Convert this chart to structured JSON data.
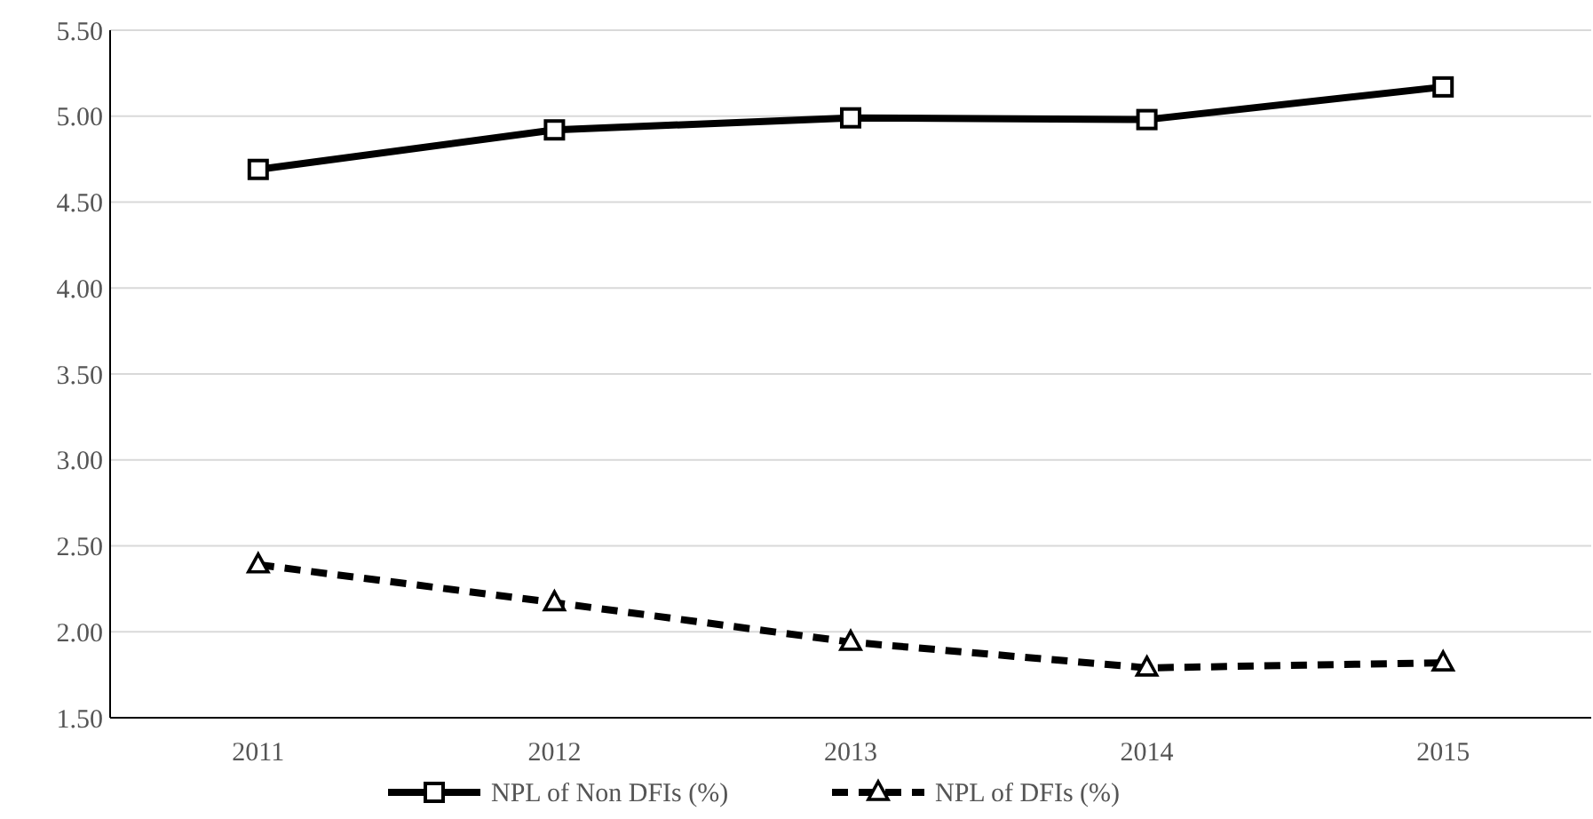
{
  "chart_data": {
    "type": "line",
    "categories": [
      "2011",
      "2012",
      "2013",
      "2014",
      "2015"
    ],
    "series": [
      {
        "name": "NPL of Non DFIs (%)",
        "color": "#000000",
        "values": [
          4.69,
          4.92,
          4.99,
          4.98,
          5.17
        ],
        "marker": "square",
        "line_style": "solid"
      },
      {
        "name": "NPL of DFIs (%)",
        "color": "#000000",
        "values": [
          2.39,
          2.17,
          1.94,
          1.79,
          1.82
        ],
        "marker": "triangle",
        "line_style": "dashed"
      }
    ],
    "ylim": [
      1.5,
      5.5
    ],
    "yticks": [
      {
        "value": 1.5,
        "label": "1.50"
      },
      {
        "value": 2,
        "label": "2.00"
      },
      {
        "value": 2.5,
        "label": "2.50"
      },
      {
        "value": 3,
        "label": "3.00"
      },
      {
        "value": 3.5,
        "label": "3.50"
      },
      {
        "value": 4,
        "label": "4.00"
      },
      {
        "value": 4.5,
        "label": "4.50"
      },
      {
        "value": 5,
        "label": "5.00"
      },
      {
        "value": 5.5,
        "label": "5.50"
      }
    ],
    "grid": "y",
    "legend": "bottom"
  }
}
